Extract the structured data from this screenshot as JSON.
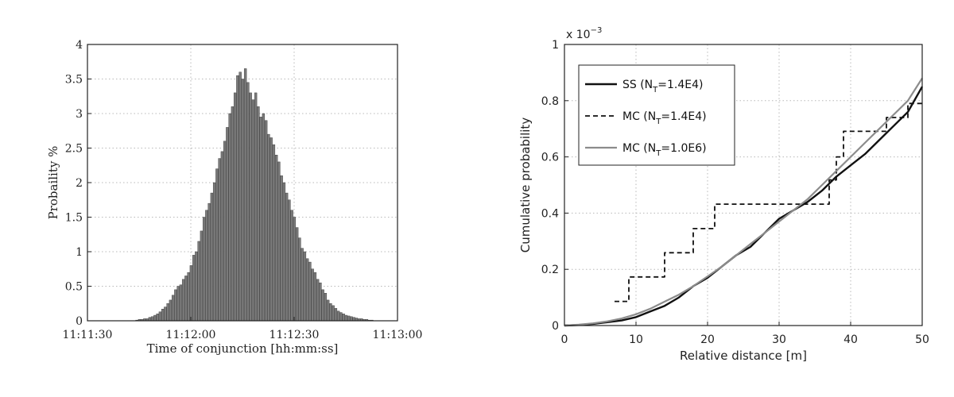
{
  "chart_data": [
    {
      "type": "bar",
      "title": "",
      "xlabel": "Time of conjunction [hh:mm:ss]",
      "ylabel": "Probaility %",
      "xlim": [
        -30,
        60
      ],
      "ylim": [
        0,
        4
      ],
      "x_tick_values": [
        -30,
        0,
        30,
        60
      ],
      "x_tick_labels": [
        "11:11:30",
        "11:12:00",
        "11:12:30",
        "11:13:00"
      ],
      "y_ticks": [
        "0",
        "0.5",
        "1",
        "1.5",
        "2",
        "2.5",
        "3",
        "3.5",
        "4"
      ],
      "y_tick_values": [
        0,
        0.5,
        1,
        1.5,
        2,
        2.5,
        3,
        3.5,
        4
      ],
      "grid": true,
      "bar_color": "#7a7a7a",
      "bin_start": -16,
      "bin_width": 0.75,
      "values": [
        0.01,
        0.02,
        0.02,
        0.03,
        0.03,
        0.05,
        0.06,
        0.08,
        0.1,
        0.13,
        0.17,
        0.2,
        0.25,
        0.3,
        0.37,
        0.45,
        0.5,
        0.52,
        0.6,
        0.65,
        0.7,
        0.8,
        0.95,
        1.0,
        1.15,
        1.3,
        1.5,
        1.6,
        1.7,
        1.85,
        2.0,
        2.2,
        2.35,
        2.45,
        2.6,
        2.8,
        3.0,
        3.1,
        3.3,
        3.55,
        3.6,
        3.5,
        3.65,
        3.45,
        3.3,
        3.2,
        3.3,
        3.1,
        2.95,
        3.0,
        2.9,
        2.7,
        2.65,
        2.55,
        2.4,
        2.3,
        2.1,
        2.0,
        1.85,
        1.75,
        1.6,
        1.5,
        1.35,
        1.2,
        1.05,
        1.0,
        0.9,
        0.85,
        0.75,
        0.7,
        0.6,
        0.55,
        0.45,
        0.4,
        0.3,
        0.25,
        0.22,
        0.18,
        0.14,
        0.12,
        0.1,
        0.08,
        0.07,
        0.06,
        0.05,
        0.04,
        0.03,
        0.03,
        0.02,
        0.02,
        0.01,
        0.01
      ]
    },
    {
      "type": "line",
      "title": "",
      "xlabel": "Relative distance [m]",
      "ylabel": "Cumulative probability",
      "multiplier_label": "x 10",
      "multiplier_exponent": "−3",
      "xlim": [
        0,
        50
      ],
      "ylim": [
        0,
        1
      ],
      "x_ticks": [
        "0",
        "10",
        "20",
        "30",
        "40",
        "50"
      ],
      "x_tick_values": [
        0,
        10,
        20,
        30,
        40,
        50
      ],
      "y_ticks": [
        "0",
        "0.2",
        "0.4",
        "0.6",
        "0.8",
        "1"
      ],
      "y_tick_values": [
        0,
        0.2,
        0.4,
        0.6,
        0.8,
        1
      ],
      "grid": true,
      "legend_position": "top-left",
      "series": [
        {
          "name": "SS (N",
          "name_subscript": "T",
          "name_suffix": "=1.4E4)",
          "color": "#111111",
          "style": "solid",
          "width": 2.4,
          "x": [
            0,
            2,
            4,
            6,
            8,
            10,
            12,
            14,
            16,
            18,
            20,
            22,
            24,
            26,
            28,
            30,
            32,
            34,
            36,
            38,
            40,
            42,
            44,
            46,
            48,
            50
          ],
          "y": [
            0,
            0.002,
            0.006,
            0.012,
            0.018,
            0.03,
            0.05,
            0.07,
            0.1,
            0.14,
            0.17,
            0.21,
            0.25,
            0.28,
            0.33,
            0.38,
            0.41,
            0.44,
            0.48,
            0.53,
            0.57,
            0.61,
            0.66,
            0.71,
            0.76,
            0.85
          ]
        },
        {
          "name": "MC (N",
          "name_subscript": "T",
          "name_suffix": "=1.4E4)",
          "color": "#111111",
          "style": "dashed",
          "width": 1.8,
          "step": true,
          "x": [
            7,
            9,
            14,
            18,
            21,
            37,
            38,
            39,
            45,
            48,
            50
          ],
          "y": [
            0.086,
            0.173,
            0.259,
            0.345,
            0.432,
            0.518,
            0.6,
            0.691,
            0.74,
            0.79,
            0.8
          ]
        },
        {
          "name": "MC (N",
          "name_subscript": "T",
          "name_suffix": "=1.0E6)",
          "color": "#8c8c8c",
          "style": "solid",
          "width": 2.2,
          "x": [
            0,
            2,
            4,
            6,
            8,
            10,
            12,
            14,
            16,
            18,
            20,
            22,
            24,
            26,
            28,
            30,
            32,
            34,
            36,
            38,
            40,
            42,
            44,
            46,
            48,
            50
          ],
          "y": [
            0,
            0.003,
            0.008,
            0.015,
            0.025,
            0.04,
            0.06,
            0.085,
            0.11,
            0.14,
            0.175,
            0.21,
            0.25,
            0.29,
            0.33,
            0.37,
            0.41,
            0.45,
            0.5,
            0.55,
            0.6,
            0.65,
            0.7,
            0.75,
            0.8,
            0.88
          ]
        }
      ]
    }
  ]
}
